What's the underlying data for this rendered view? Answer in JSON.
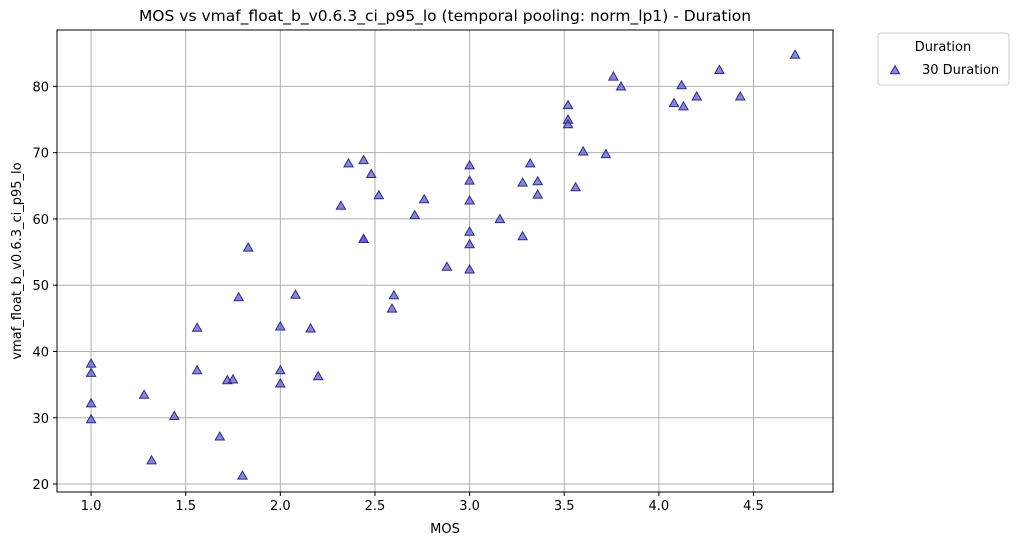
{
  "chart_data": {
    "type": "scatter",
    "title": "MOS vs vmaf_float_b_v0.6.3_ci_p95_lo (temporal pooling: norm_lp1) - Duration",
    "xlabel": "MOS",
    "ylabel": "vmaf_float_b_v0.6.3_ci_p95_lo",
    "xlim": [
      0.82,
      4.92
    ],
    "ylim": [
      18.8,
      88.5
    ],
    "xticks": [
      "1.0",
      "1.5",
      "2.0",
      "2.5",
      "3.0",
      "3.5",
      "4.0",
      "4.5"
    ],
    "yticks": [
      "20",
      "30",
      "40",
      "50",
      "60",
      "70",
      "80"
    ],
    "grid": true,
    "legend": {
      "title": "Duration",
      "placement": "outside-top-right"
    },
    "marker": "triangle",
    "colors": {
      "fill": "#5b58c0",
      "edge": "#2e2a8a"
    },
    "series": [
      {
        "name": "30 Duration",
        "points": [
          [
            1.0,
            38.2
          ],
          [
            1.0,
            36.8
          ],
          [
            1.0,
            32.2
          ],
          [
            1.0,
            29.8
          ],
          [
            1.28,
            33.5
          ],
          [
            1.32,
            23.6
          ],
          [
            1.44,
            30.3
          ],
          [
            1.56,
            43.6
          ],
          [
            1.56,
            37.2
          ],
          [
            1.68,
            27.2
          ],
          [
            1.72,
            35.7
          ],
          [
            1.75,
            35.8
          ],
          [
            1.78,
            48.2
          ],
          [
            1.8,
            21.3
          ],
          [
            1.83,
            55.7
          ],
          [
            2.0,
            43.8
          ],
          [
            2.0,
            37.2
          ],
          [
            2.0,
            35.2
          ],
          [
            2.08,
            48.6
          ],
          [
            2.16,
            43.5
          ],
          [
            2.2,
            36.3
          ],
          [
            2.32,
            62.0
          ],
          [
            2.36,
            68.4
          ],
          [
            2.44,
            68.9
          ],
          [
            2.44,
            57.0
          ],
          [
            2.44,
            57.0
          ],
          [
            2.48,
            66.8
          ],
          [
            2.52,
            63.6
          ],
          [
            2.59,
            46.5
          ],
          [
            2.6,
            48.5
          ],
          [
            2.71,
            60.6
          ],
          [
            2.76,
            63.0
          ],
          [
            2.88,
            52.8
          ],
          [
            3.0,
            68.1
          ],
          [
            3.0,
            65.8
          ],
          [
            3.0,
            62.8
          ],
          [
            3.0,
            58.1
          ],
          [
            3.0,
            56.2
          ],
          [
            3.0,
            52.4
          ],
          [
            3.16,
            60.0
          ],
          [
            3.28,
            65.5
          ],
          [
            3.28,
            57.4
          ],
          [
            3.32,
            68.4
          ],
          [
            3.36,
            65.7
          ],
          [
            3.36,
            63.7
          ],
          [
            3.52,
            77.2
          ],
          [
            3.52,
            75.0
          ],
          [
            3.52,
            74.3
          ],
          [
            3.56,
            64.8
          ],
          [
            3.6,
            70.2
          ],
          [
            3.72,
            69.8
          ],
          [
            3.76,
            81.5
          ],
          [
            3.8,
            80.0
          ],
          [
            4.08,
            77.5
          ],
          [
            4.12,
            80.2
          ],
          [
            4.13,
            77.0
          ],
          [
            4.2,
            78.5
          ],
          [
            4.32,
            82.5
          ],
          [
            4.43,
            78.5
          ],
          [
            4.72,
            84.8
          ]
        ]
      }
    ]
  }
}
